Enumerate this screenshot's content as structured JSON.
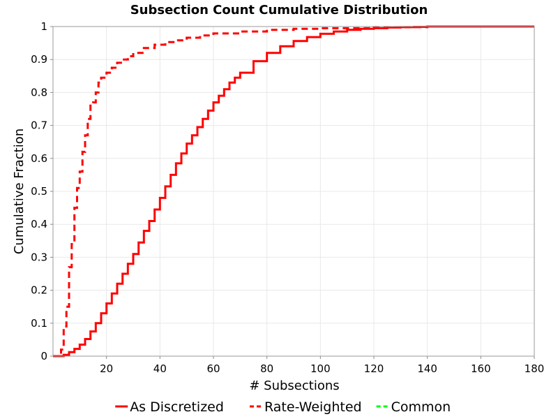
{
  "chart_data": {
    "type": "line",
    "title": "Subsection Count Cumulative Distribution",
    "xlabel": "# Subsections",
    "ylabel": "Cumulative Fraction",
    "xlim": [
      0,
      180
    ],
    "ylim": [
      0,
      1
    ],
    "x_ticks": [
      "20",
      "40",
      "60",
      "80",
      "100",
      "120",
      "140",
      "160",
      "180"
    ],
    "y_ticks": [
      "0",
      "0.1",
      "0.2",
      "0.3",
      "0.4",
      "0.5",
      "0.6",
      "0.7",
      "0.8",
      "0.9",
      "1"
    ],
    "grid": true,
    "legend_position": "bottom",
    "series": [
      {
        "name": "As Discretized",
        "color": "#ff0000",
        "style": "solid",
        "step": true,
        "points": [
          [
            0,
            0
          ],
          [
            4,
            0.004
          ],
          [
            6,
            0.012
          ],
          [
            8,
            0.022
          ],
          [
            10,
            0.035
          ],
          [
            12,
            0.052
          ],
          [
            14,
            0.075
          ],
          [
            16,
            0.1
          ],
          [
            18,
            0.13
          ],
          [
            20,
            0.16
          ],
          [
            22,
            0.19
          ],
          [
            24,
            0.22
          ],
          [
            26,
            0.25
          ],
          [
            28,
            0.28
          ],
          [
            30,
            0.31
          ],
          [
            32,
            0.345
          ],
          [
            34,
            0.38
          ],
          [
            36,
            0.41
          ],
          [
            38,
            0.445
          ],
          [
            40,
            0.48
          ],
          [
            42,
            0.515
          ],
          [
            44,
            0.55
          ],
          [
            46,
            0.585
          ],
          [
            48,
            0.615
          ],
          [
            50,
            0.645
          ],
          [
            52,
            0.67
          ],
          [
            54,
            0.695
          ],
          [
            56,
            0.72
          ],
          [
            58,
            0.745
          ],
          [
            60,
            0.77
          ],
          [
            62,
            0.79
          ],
          [
            64,
            0.81
          ],
          [
            66,
            0.83
          ],
          [
            68,
            0.845
          ],
          [
            70,
            0.86
          ],
          [
            75,
            0.895
          ],
          [
            80,
            0.92
          ],
          [
            85,
            0.94
          ],
          [
            90,
            0.956
          ],
          [
            95,
            0.968
          ],
          [
            100,
            0.978
          ],
          [
            105,
            0.985
          ],
          [
            110,
            0.99
          ],
          [
            115,
            0.993
          ],
          [
            120,
            0.995
          ],
          [
            125,
            0.997
          ],
          [
            130,
            0.998
          ],
          [
            135,
            0.999
          ],
          [
            140,
            1
          ],
          [
            180,
            1
          ]
        ]
      },
      {
        "name": "Rate-Weighted",
        "color": "#ff0000",
        "style": "dashed",
        "step": true,
        "points": [
          [
            0,
            0
          ],
          [
            3,
            0.02
          ],
          [
            4,
            0.09
          ],
          [
            5,
            0.15
          ],
          [
            6,
            0.27
          ],
          [
            7,
            0.34
          ],
          [
            8,
            0.45
          ],
          [
            9,
            0.51
          ],
          [
            10,
            0.56
          ],
          [
            11,
            0.62
          ],
          [
            12,
            0.67
          ],
          [
            13,
            0.72
          ],
          [
            14,
            0.76
          ],
          [
            15,
            0.77
          ],
          [
            16,
            0.8
          ],
          [
            17,
            0.83
          ],
          [
            18,
            0.845
          ],
          [
            20,
            0.86
          ],
          [
            22,
            0.875
          ],
          [
            24,
            0.89
          ],
          [
            26,
            0.9
          ],
          [
            28,
            0.91
          ],
          [
            30,
            0.92
          ],
          [
            34,
            0.935
          ],
          [
            38,
            0.945
          ],
          [
            42,
            0.953
          ],
          [
            46,
            0.958
          ],
          [
            50,
            0.966
          ],
          [
            55,
            0.973
          ],
          [
            60,
            0.979
          ],
          [
            70,
            0.985
          ],
          [
            80,
            0.99
          ],
          [
            90,
            0.993
          ],
          [
            100,
            0.995
          ],
          [
            120,
            0.998
          ],
          [
            140,
            1
          ],
          [
            180,
            1
          ]
        ]
      },
      {
        "name": "Common",
        "color": "#00ff00",
        "style": "dashed",
        "step": true,
        "points": []
      }
    ]
  }
}
